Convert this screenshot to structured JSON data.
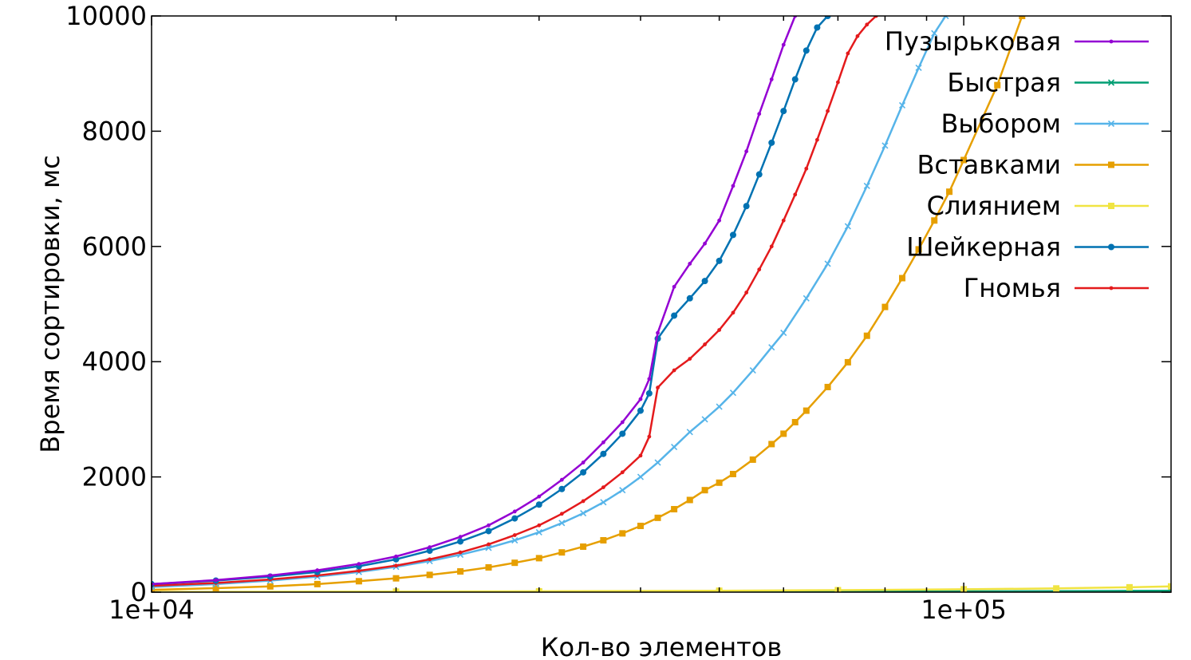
{
  "chart_data": {
    "type": "line",
    "title": "",
    "xlabel": "Кол-во элементов",
    "ylabel": "Время сортировки, мс",
    "x_scale": "log",
    "xlim": [
      10000,
      180000
    ],
    "ylim": [
      0,
      10000
    ],
    "x_ticks": [
      10000,
      100000
    ],
    "x_tick_labels": [
      "1e+04",
      "1e+05"
    ],
    "y_ticks": [
      0,
      2000,
      4000,
      6000,
      8000,
      10000
    ],
    "y_tick_labels": [
      "0",
      "2000",
      "4000",
      "6000",
      "8000",
      "10000"
    ],
    "grid": false,
    "legend_position": "top-right",
    "series": [
      {
        "name": "Пузырьковая",
        "color": "#9400d3",
        "marker": "dot",
        "x": [
          10000,
          12000,
          14000,
          16000,
          18000,
          20000,
          22000,
          24000,
          26000,
          28000,
          30000,
          32000,
          34000,
          36000,
          38000,
          40000,
          41000,
          42000,
          44000,
          46000,
          48000,
          50000,
          52000,
          54000,
          56000,
          58000,
          60000,
          62000
        ],
        "y": [
          140,
          210,
          290,
          380,
          490,
          620,
          780,
          960,
          1160,
          1400,
          1660,
          1950,
          2250,
          2600,
          2950,
          3350,
          3700,
          4500,
          5300,
          5700,
          6050,
          6450,
          7050,
          7650,
          8300,
          8900,
          9500,
          10000
        ]
      },
      {
        "name": "Быстрая",
        "color": "#009e73",
        "marker": "x",
        "x": [
          10000,
          20000,
          30000,
          50000,
          70000,
          100000,
          130000,
          160000,
          180000
        ],
        "y": [
          2,
          4,
          6,
          8,
          11,
          14,
          18,
          22,
          25
        ]
      },
      {
        "name": "Выбором",
        "color": "#56b4e9",
        "marker": "x",
        "x": [
          10000,
          12000,
          14000,
          16000,
          18000,
          20000,
          22000,
          24000,
          26000,
          28000,
          30000,
          32000,
          34000,
          36000,
          38000,
          40000,
          42000,
          44000,
          46000,
          48000,
          50000,
          52000,
          55000,
          58000,
          60000,
          64000,
          68000,
          72000,
          76000,
          80000,
          84000,
          88000,
          92000,
          95000
        ],
        "y": [
          90,
          140,
          200,
          270,
          350,
          440,
          540,
          650,
          770,
          900,
          1040,
          1200,
          1370,
          1560,
          1770,
          2000,
          2250,
          2520,
          2780,
          3000,
          3220,
          3460,
          3850,
          4250,
          4500,
          5100,
          5700,
          6350,
          7050,
          7750,
          8450,
          9100,
          9700,
          10000
        ]
      },
      {
        "name": "Вставками",
        "color": "#e69f00",
        "marker": "square",
        "x": [
          10000,
          12000,
          14000,
          16000,
          18000,
          20000,
          22000,
          24000,
          26000,
          28000,
          30000,
          32000,
          34000,
          36000,
          38000,
          40000,
          42000,
          44000,
          46000,
          48000,
          50000,
          52000,
          55000,
          58000,
          60000,
          62000,
          64000,
          68000,
          72000,
          76000,
          80000,
          84000,
          88000,
          92000,
          96000,
          100000,
          110000,
          118000
        ],
        "y": [
          40,
          70,
          100,
          140,
          190,
          240,
          300,
          360,
          430,
          510,
          590,
          690,
          790,
          900,
          1020,
          1150,
          1290,
          1440,
          1600,
          1770,
          1900,
          2050,
          2300,
          2570,
          2750,
          2950,
          3150,
          3560,
          3990,
          4450,
          4950,
          5450,
          5950,
          6450,
          6950,
          7500,
          8800,
          10000
        ]
      },
      {
        "name": "Слиянием",
        "color": "#f0e442",
        "marker": "square",
        "x": [
          10000,
          20000,
          30000,
          50000,
          70000,
          100000,
          130000,
          160000,
          180000
        ],
        "y": [
          5,
          10,
          15,
          25,
          35,
          50,
          65,
          85,
          100
        ]
      },
      {
        "name": "Шейкерная",
        "color": "#0072b2",
        "marker": "circle",
        "x": [
          10000,
          12000,
          14000,
          16000,
          18000,
          20000,
          22000,
          24000,
          26000,
          28000,
          30000,
          32000,
          34000,
          36000,
          38000,
          40000,
          41000,
          42000,
          44000,
          46000,
          48000,
          50000,
          52000,
          54000,
          56000,
          58000,
          60000,
          62000,
          64000,
          66000,
          68000
        ],
        "y": [
          140,
          200,
          270,
          350,
          450,
          570,
          720,
          880,
          1060,
          1280,
          1520,
          1790,
          2080,
          2400,
          2750,
          3150,
          3450,
          4400,
          4800,
          5100,
          5400,
          5750,
          6200,
          6700,
          7250,
          7800,
          8350,
          8900,
          9400,
          9800,
          10000
        ]
      },
      {
        "name": "Гномья",
        "color": "#e41a1c",
        "marker": "dot",
        "x": [
          10000,
          12000,
          14000,
          16000,
          18000,
          20000,
          22000,
          24000,
          26000,
          28000,
          30000,
          32000,
          34000,
          36000,
          38000,
          40000,
          41000,
          42000,
          44000,
          46000,
          48000,
          50000,
          52000,
          54000,
          56000,
          58000,
          60000,
          62000,
          64000,
          66000,
          68000,
          70000,
          72000,
          74000,
          76000,
          78000
        ],
        "y": [
          110,
          160,
          220,
          290,
          370,
          460,
          570,
          690,
          830,
          990,
          1160,
          1360,
          1580,
          1820,
          2080,
          2370,
          2700,
          3550,
          3850,
          4050,
          4300,
          4550,
          4850,
          5200,
          5600,
          6000,
          6450,
          6900,
          7350,
          7850,
          8350,
          8850,
          9350,
          9650,
          9850,
          10000
        ]
      }
    ]
  }
}
